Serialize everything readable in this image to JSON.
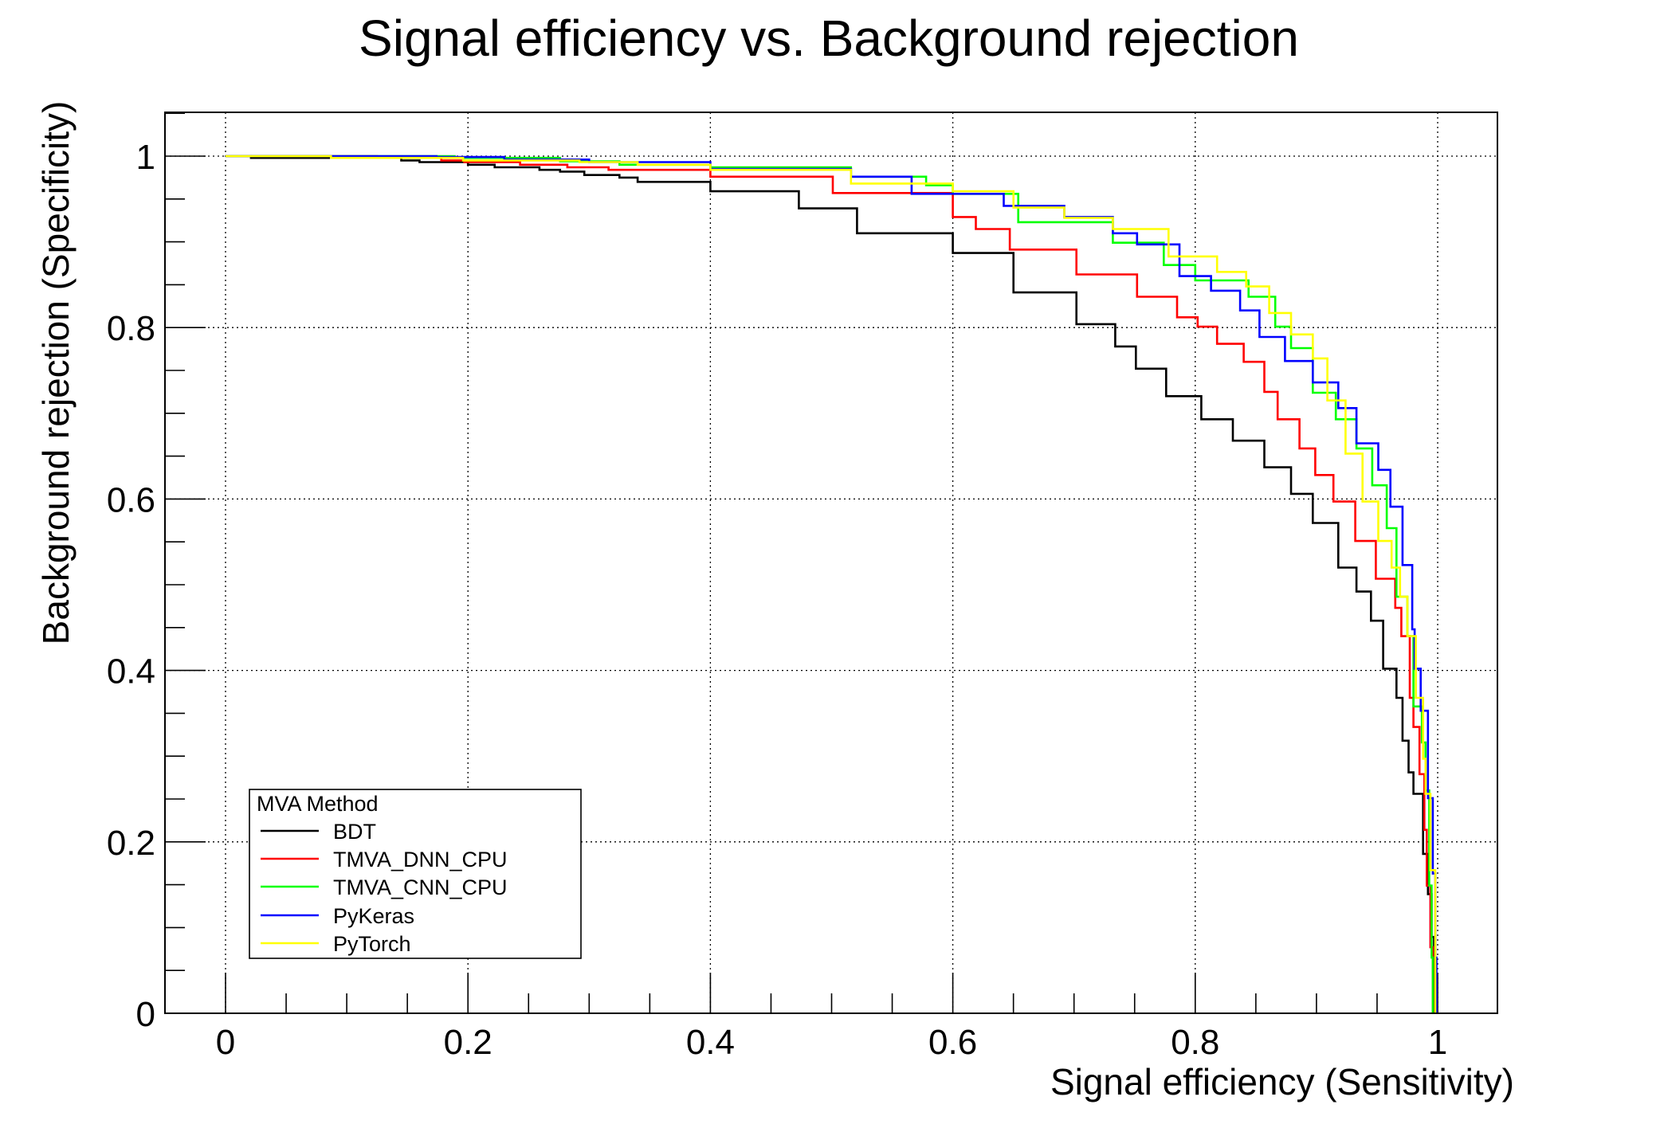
{
  "chart_data": {
    "type": "line",
    "title": "Signal efficiency vs. Background rejection",
    "xlabel": "Signal efficiency (Sensitivity)",
    "ylabel": "Background rejection (Specificity)",
    "xlim": [
      -0.05,
      1.05
    ],
    "ylim": [
      0,
      1.05
    ],
    "grid": true,
    "x_ticks": [
      0,
      0.2,
      0.4,
      0.6,
      0.8,
      1
    ],
    "x_tick_labels": [
      "0",
      "0.2",
      "0.4",
      "0.6",
      "0.8",
      "1"
    ],
    "y_ticks": [
      0,
      0.2,
      0.4,
      0.6,
      0.8,
      1
    ],
    "y_tick_labels": [
      "0",
      "0.2",
      "0.4",
      "0.6",
      "0.8",
      "1"
    ],
    "minor_tick_step": 0.05,
    "legend": {
      "title": "MVA Method",
      "placement": "bottom-left",
      "entries": [
        "BDT",
        "TMVA_DNN_CPU",
        "TMVA_CNN_CPU",
        "PyKeras",
        "PyTorch"
      ]
    },
    "series": [
      {
        "name": "BDT",
        "color": "#000000",
        "points": [
          [
            0.02,
            1.0
          ],
          [
            0.021,
            0.998
          ],
          [
            0.145,
            0.995
          ],
          [
            0.16,
            0.993
          ],
          [
            0.2,
            0.99
          ],
          [
            0.222,
            0.987
          ],
          [
            0.259,
            0.984
          ],
          [
            0.276,
            0.982
          ],
          [
            0.296,
            0.978
          ],
          [
            0.325,
            0.975
          ],
          [
            0.34,
            0.97
          ],
          [
            0.4,
            0.959
          ],
          [
            0.473,
            0.939
          ],
          [
            0.521,
            0.91
          ],
          [
            0.6,
            0.887
          ],
          [
            0.65,
            0.841
          ],
          [
            0.702,
            0.804
          ],
          [
            0.734,
            0.778
          ],
          [
            0.751,
            0.752
          ],
          [
            0.776,
            0.72
          ],
          [
            0.805,
            0.693
          ],
          [
            0.831,
            0.668
          ],
          [
            0.857,
            0.637
          ],
          [
            0.879,
            0.606
          ],
          [
            0.897,
            0.572
          ],
          [
            0.918,
            0.52
          ],
          [
            0.933,
            0.492
          ],
          [
            0.945,
            0.458
          ],
          [
            0.955,
            0.402
          ],
          [
            0.966,
            0.368
          ],
          [
            0.971,
            0.318
          ],
          [
            0.976,
            0.281
          ],
          [
            0.98,
            0.256
          ],
          [
            0.988,
            0.186
          ],
          [
            0.992,
            0.139
          ],
          [
            0.995,
            0.089
          ],
          [
            0.997,
            0.0
          ]
        ]
      },
      {
        "name": "TMVA_DNN_CPU",
        "color": "#ff0000",
        "points": [
          [
            0.0,
            1.0
          ],
          [
            0.125,
            0.999
          ],
          [
            0.178,
            0.995
          ],
          [
            0.197,
            0.993
          ],
          [
            0.243,
            0.99
          ],
          [
            0.282,
            0.987
          ],
          [
            0.316,
            0.984
          ],
          [
            0.4,
            0.976
          ],
          [
            0.501,
            0.957
          ],
          [
            0.6,
            0.929
          ],
          [
            0.619,
            0.915
          ],
          [
            0.647,
            0.891
          ],
          [
            0.702,
            0.862
          ],
          [
            0.752,
            0.836
          ],
          [
            0.785,
            0.812
          ],
          [
            0.802,
            0.801
          ],
          [
            0.818,
            0.781
          ],
          [
            0.84,
            0.76
          ],
          [
            0.857,
            0.725
          ],
          [
            0.868,
            0.693
          ],
          [
            0.886,
            0.659
          ],
          [
            0.899,
            0.628
          ],
          [
            0.914,
            0.597
          ],
          [
            0.932,
            0.551
          ],
          [
            0.949,
            0.507
          ],
          [
            0.965,
            0.473
          ],
          [
            0.97,
            0.44
          ],
          [
            0.977,
            0.368
          ],
          [
            0.98,
            0.334
          ],
          [
            0.985,
            0.279
          ],
          [
            0.989,
            0.214
          ],
          [
            0.991,
            0.149
          ],
          [
            0.994,
            0.077
          ],
          [
            0.996,
            0.0
          ]
        ]
      },
      {
        "name": "TMVA_CNN_CPU",
        "color": "#00ff00",
        "points": [
          [
            0.0,
            1.0
          ],
          [
            0.189,
            0.998
          ],
          [
            0.276,
            0.994
          ],
          [
            0.325,
            0.99
          ],
          [
            0.4,
            0.987
          ],
          [
            0.516,
            0.976
          ],
          [
            0.578,
            0.966
          ],
          [
            0.6,
            0.956
          ],
          [
            0.654,
            0.923
          ],
          [
            0.732,
            0.899
          ],
          [
            0.774,
            0.873
          ],
          [
            0.8,
            0.855
          ],
          [
            0.844,
            0.836
          ],
          [
            0.866,
            0.801
          ],
          [
            0.879,
            0.776
          ],
          [
            0.897,
            0.724
          ],
          [
            0.916,
            0.693
          ],
          [
            0.933,
            0.659
          ],
          [
            0.946,
            0.616
          ],
          [
            0.958,
            0.566
          ],
          [
            0.966,
            0.486
          ],
          [
            0.975,
            0.44
          ],
          [
            0.98,
            0.358
          ],
          [
            0.987,
            0.316
          ],
          [
            0.99,
            0.26
          ],
          [
            0.993,
            0.149
          ],
          [
            0.995,
            0.065
          ],
          [
            0.996,
            0.0
          ]
        ]
      },
      {
        "name": "PyKeras",
        "color": "#0000ff",
        "points": [
          [
            0.0,
            1.0
          ],
          [
            0.174,
            0.999
          ],
          [
            0.23,
            0.996
          ],
          [
            0.3,
            0.993
          ],
          [
            0.4,
            0.985
          ],
          [
            0.516,
            0.976
          ],
          [
            0.566,
            0.956
          ],
          [
            0.642,
            0.942
          ],
          [
            0.692,
            0.929
          ],
          [
            0.732,
            0.91
          ],
          [
            0.752,
            0.897
          ],
          [
            0.787,
            0.86
          ],
          [
            0.813,
            0.843
          ],
          [
            0.837,
            0.82
          ],
          [
            0.853,
            0.789
          ],
          [
            0.874,
            0.761
          ],
          [
            0.897,
            0.736
          ],
          [
            0.918,
            0.706
          ],
          [
            0.933,
            0.665
          ],
          [
            0.951,
            0.634
          ],
          [
            0.961,
            0.591
          ],
          [
            0.971,
            0.523
          ],
          [
            0.979,
            0.448
          ],
          [
            0.981,
            0.402
          ],
          [
            0.986,
            0.353
          ],
          [
            0.992,
            0.251
          ],
          [
            0.996,
            0.163
          ],
          [
            0.998,
            0.065
          ],
          [
            0.999,
            0.0
          ]
        ]
      },
      {
        "name": "PyTorch",
        "color": "#ffff00",
        "points": [
          [
            0.0,
            1.0
          ],
          [
            0.087,
            0.998
          ],
          [
            0.196,
            0.995
          ],
          [
            0.292,
            0.993
          ],
          [
            0.34,
            0.99
          ],
          [
            0.4,
            0.984
          ],
          [
            0.516,
            0.968
          ],
          [
            0.6,
            0.959
          ],
          [
            0.65,
            0.94
          ],
          [
            0.692,
            0.928
          ],
          [
            0.732,
            0.915
          ],
          [
            0.778,
            0.883
          ],
          [
            0.818,
            0.865
          ],
          [
            0.842,
            0.848
          ],
          [
            0.861,
            0.817
          ],
          [
            0.879,
            0.792
          ],
          [
            0.897,
            0.764
          ],
          [
            0.909,
            0.715
          ],
          [
            0.924,
            0.653
          ],
          [
            0.938,
            0.597
          ],
          [
            0.951,
            0.551
          ],
          [
            0.962,
            0.52
          ],
          [
            0.969,
            0.486
          ],
          [
            0.975,
            0.44
          ],
          [
            0.982,
            0.368
          ],
          [
            0.988,
            0.297
          ],
          [
            0.99,
            0.256
          ],
          [
            0.994,
            0.167
          ],
          [
            0.998,
            0.015
          ],
          [
            0.998,
            0.0
          ]
        ]
      }
    ]
  }
}
